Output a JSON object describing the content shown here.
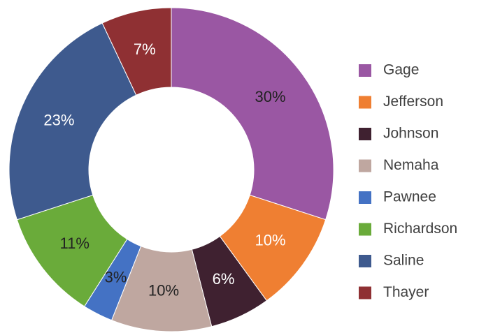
{
  "chart_data": {
    "type": "donut",
    "categories": [
      "Gage",
      "Jefferson",
      "Johnson",
      "Nemaha",
      "Pawnee",
      "Richardson",
      "Saline",
      "Thayer"
    ],
    "values": [
      30,
      10,
      6,
      10,
      3,
      11,
      23,
      7
    ],
    "value_labels": [
      "30%",
      "10%",
      "6%",
      "10%",
      "3%",
      "11%",
      "23%",
      "7%"
    ],
    "colors": [
      "#9a57a3",
      "#ef7f32",
      "#3f2130",
      "#bfa7a0",
      "#4472c4",
      "#6aab3a",
      "#3e5a8e",
      "#8f3033"
    ],
    "label_colors": [
      "#222222",
      "#ffffff",
      "#ffffff",
      "#222222",
      "#222222",
      "#222222",
      "#ffffff",
      "#ffffff"
    ],
    "legend": "right"
  }
}
